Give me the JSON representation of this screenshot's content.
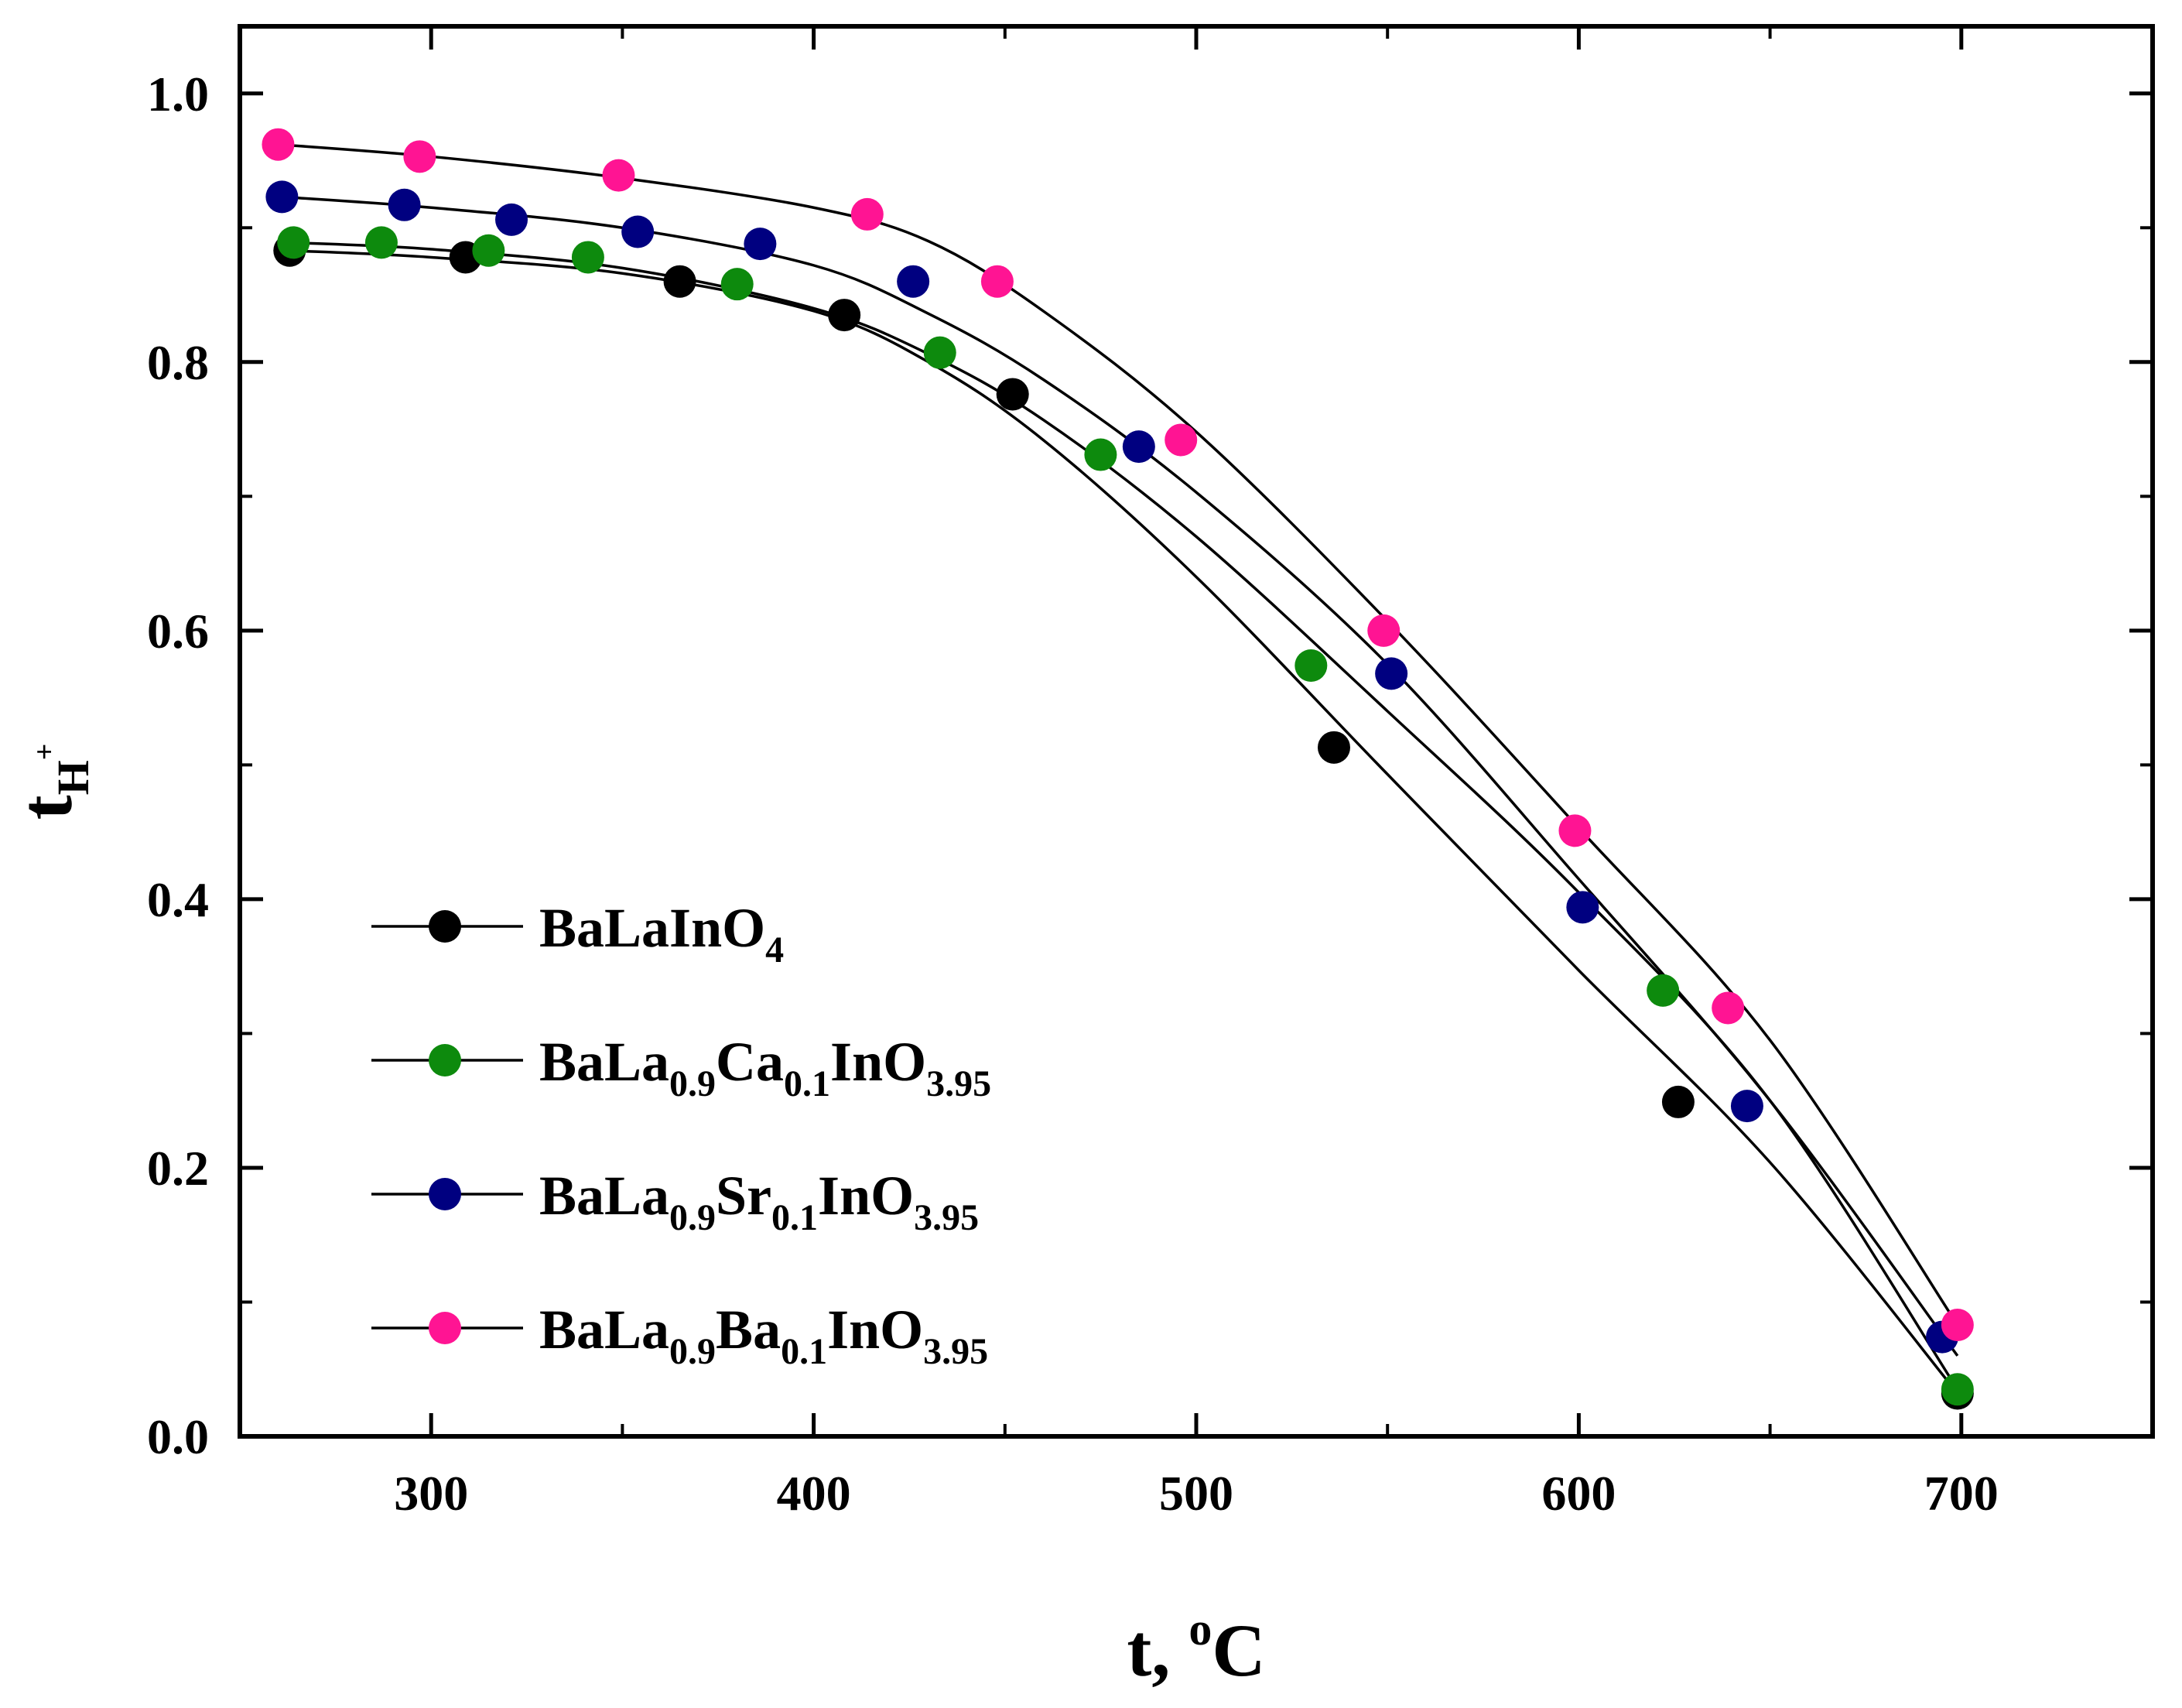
{
  "chart_data": {
    "type": "line",
    "title": "",
    "xlabel": {
      "main": "t, ",
      "sup": "o",
      "tail": "C"
    },
    "ylabel": {
      "main": "t",
      "sub": "H",
      "sup": "+"
    },
    "xlim": [
      250,
      750
    ],
    "ylim": [
      0.0,
      1.05
    ],
    "xticks": [
      300,
      400,
      500,
      600,
      700
    ],
    "xtick_labels": [
      "300",
      "400",
      "500",
      "600",
      "700"
    ],
    "yticks": [
      0.0,
      0.2,
      0.4,
      0.6,
      0.8,
      1.0
    ],
    "ytick_labels": [
      "0.0",
      "0.2",
      "0.4",
      "0.6",
      "0.8",
      "1.0"
    ],
    "grid": false,
    "legend_position": "lower-left",
    "series": [
      {
        "name": "BaLaInO4",
        "label_parts": [
          {
            "t": "BaLaInO",
            "s": "n"
          },
          {
            "t": "4",
            "s": "sub"
          }
        ],
        "color": "#000000",
        "x": [
          263,
          309,
          365,
          408,
          452,
          536,
          626,
          699
        ],
        "y": [
          0.883,
          0.878,
          0.86,
          0.835,
          0.776,
          0.513,
          0.249,
          0.032
        ],
        "curve_x": [
          263,
          300,
          350,
          400,
          430,
          460,
          500,
          550,
          600,
          650,
          699
        ],
        "curve_y": [
          0.883,
          0.878,
          0.866,
          0.838,
          0.8,
          0.742,
          0.64,
          0.493,
          0.347,
          0.204,
          0.032
        ]
      },
      {
        "name": "BaLa0.9Ca0.1InO3.95",
        "label_parts": [
          {
            "t": "BaLa",
            "s": "n"
          },
          {
            "t": "0.9",
            "s": "sub"
          },
          {
            "t": "Ca",
            "s": "n"
          },
          {
            "t": "0.1",
            "s": "sub"
          },
          {
            "t": "InO",
            "s": "n"
          },
          {
            "t": "3.95",
            "s": "sub"
          }
        ],
        "color": "#0d8a0d",
        "x": [
          264,
          287,
          315,
          341,
          380,
          433,
          475,
          530,
          622,
          699
        ],
        "y": [
          0.889,
          0.889,
          0.883,
          0.878,
          0.858,
          0.807,
          0.731,
          0.574,
          0.332,
          0.035
        ],
        "curve_x": [
          263,
          300,
          350,
          400,
          430,
          460,
          500,
          550,
          600,
          650,
          699
        ],
        "curve_y": [
          0.889,
          0.884,
          0.87,
          0.84,
          0.806,
          0.757,
          0.67,
          0.54,
          0.405,
          0.25,
          0.035
        ]
      },
      {
        "name": "BaLa0.9Sr0.1InO3.95",
        "label_parts": [
          {
            "t": "BaLa",
            "s": "n"
          },
          {
            "t": "0.9",
            "s": "sub"
          },
          {
            "t": "Sr",
            "s": "n"
          },
          {
            "t": "0.1",
            "s": "sub"
          },
          {
            "t": "InO",
            "s": "n"
          },
          {
            "t": "3.95",
            "s": "sub"
          }
        ],
        "color": "#000080",
        "x": [
          261,
          293,
          321,
          354,
          386,
          426,
          485,
          551,
          601,
          644,
          695
        ],
        "y": [
          0.923,
          0.917,
          0.906,
          0.897,
          0.888,
          0.86,
          0.737,
          0.568,
          0.394,
          0.246,
          0.074
        ],
        "curve_x": [
          261,
          300,
          350,
          400,
          430,
          460,
          500,
          550,
          600,
          650,
          699
        ],
        "curve_y": [
          0.923,
          0.915,
          0.9,
          0.872,
          0.836,
          0.787,
          0.703,
          0.575,
          0.415,
          0.25,
          0.06
        ]
      },
      {
        "name": "BaLa0.9Ba0.1InO3.95",
        "label_parts": [
          {
            "t": "BaLa",
            "s": "n"
          },
          {
            "t": "0.9",
            "s": "sub"
          },
          {
            "t": "Ba",
            "s": "n"
          },
          {
            "t": "0.1",
            "s": "sub"
          },
          {
            "t": "InO",
            "s": "n"
          },
          {
            "t": "3.95",
            "s": "sub"
          }
        ],
        "color": "#ff1493",
        "x": [
          260,
          297,
          349,
          414,
          448,
          496,
          549,
          599,
          639,
          699
        ],
        "y": [
          0.962,
          0.953,
          0.939,
          0.91,
          0.86,
          0.742,
          0.6,
          0.451,
          0.319,
          0.083
        ],
        "curve_x": [
          260,
          300,
          350,
          400,
          430,
          460,
          500,
          550,
          600,
          650,
          699
        ],
        "curve_y": [
          0.962,
          0.953,
          0.937,
          0.915,
          0.89,
          0.838,
          0.748,
          0.607,
          0.453,
          0.295,
          0.083
        ]
      }
    ]
  }
}
